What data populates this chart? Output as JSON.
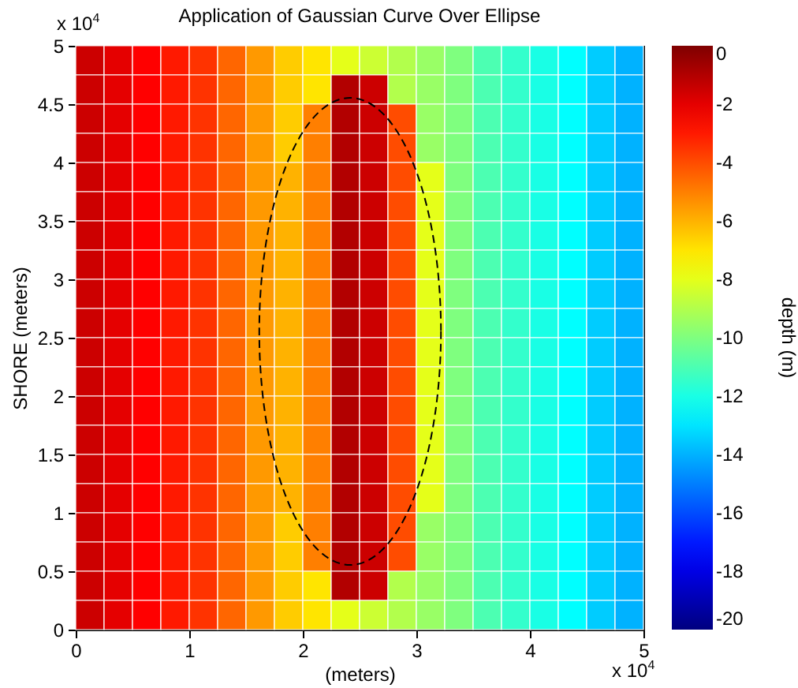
{
  "chart_data": {
    "type": "heatmap",
    "title": "Application of Gaussian Curve Over Ellipse",
    "xlabel": "(meters)",
    "ylabel": "SHORE    (meters)",
    "clabel": "depth (m)",
    "annotations": [
      "x 10$^{4}$",
      "x 10$^{4}$"
    ],
    "xlim": [
      0,
      5
    ],
    "ylim": [
      0,
      5
    ],
    "xticks": [
      0,
      1,
      2,
      3,
      4,
      5
    ],
    "yticks": [
      0,
      0.5,
      1,
      1.5,
      2,
      2.5,
      3,
      3.5,
      4,
      4.5,
      5
    ],
    "clim": [
      -20,
      0
    ],
    "cticks": [
      -20,
      -18,
      -16,
      -14,
      -12,
      -10,
      -8,
      -6,
      -4,
      -2,
      0
    ],
    "cells": [
      [
        -1.5,
        -2,
        -2.5,
        -3,
        -3.5,
        -4.5,
        -5.5,
        -6.5,
        -7,
        -8,
        -8.5,
        -9,
        -9.5,
        -10,
        -11,
        -11.5,
        -12,
        -12.5,
        -13.5,
        -14
      ],
      [
        -1.5,
        -2,
        -2.5,
        -3,
        -3.5,
        -4.5,
        -5.5,
        -6.5,
        -7,
        -1,
        -1.5,
        -9,
        -9.5,
        -10,
        -11,
        -11.5,
        -12,
        -12.5,
        -13.5,
        -14
      ],
      [
        -1.5,
        -2,
        -2.5,
        -3,
        -3.5,
        -4.5,
        -5.5,
        -6.5,
        -5,
        -1,
        -1.5,
        -4,
        -9.5,
        -10,
        -11,
        -11.5,
        -12,
        -12.5,
        -13.5,
        -14
      ],
      [
        -1.5,
        -2,
        -2.5,
        -3,
        -3.5,
        -4.5,
        -5.5,
        -6.5,
        -5,
        -1,
        -1.5,
        -4,
        -9.5,
        -10,
        -11,
        -11.5,
        -12,
        -12.5,
        -13.5,
        -14
      ],
      [
        -1.5,
        -2,
        -2.5,
        -3,
        -3.5,
        -4.5,
        -5.5,
        -6,
        -5,
        -1,
        -1.5,
        -4,
        -8,
        -10,
        -11,
        -11.5,
        -12,
        -12.5,
        -13.5,
        -14
      ],
      [
        -1.5,
        -2,
        -2.5,
        -3,
        -3.5,
        -4.5,
        -5.5,
        -6,
        -5,
        -1,
        -1.5,
        -4,
        -8,
        -10,
        -11,
        -11.5,
        -12,
        -12.5,
        -13.5,
        -14
      ],
      [
        -1.5,
        -2,
        -2.5,
        -3,
        -3.5,
        -4.5,
        -5.5,
        -6,
        -5,
        -1,
        -1.5,
        -4,
        -8,
        -10,
        -11,
        -11.5,
        -12,
        -12.5,
        -13.5,
        -14
      ],
      [
        -1.5,
        -2,
        -2.5,
        -3,
        -3.5,
        -4.5,
        -5.5,
        -6,
        -5,
        -1,
        -1.5,
        -4,
        -8,
        -10,
        -11,
        -11.5,
        -12,
        -12.5,
        -13.5,
        -14
      ],
      [
        -1.5,
        -2,
        -2.5,
        -3,
        -3.5,
        -4.5,
        -5.5,
        -6,
        -5,
        -1,
        -1.5,
        -4,
        -8,
        -10,
        -11,
        -11.5,
        -12,
        -12.5,
        -13.5,
        -14
      ],
      [
        -1.5,
        -2,
        -2.5,
        -3,
        -3.5,
        -4.5,
        -5.5,
        -6,
        -5,
        -1,
        -1.5,
        -4,
        -8,
        -10,
        -11,
        -11.5,
        -12,
        -12.5,
        -13.5,
        -14
      ],
      [
        -1.5,
        -2,
        -2.5,
        -3,
        -3.5,
        -4.5,
        -5.5,
        -6,
        -5,
        -1,
        -1.5,
        -4,
        -8,
        -10,
        -11,
        -11.5,
        -12,
        -12.5,
        -13.5,
        -14
      ],
      [
        -1.5,
        -2,
        -2.5,
        -3,
        -3.5,
        -4.5,
        -5.5,
        -6,
        -5,
        -1,
        -1.5,
        -4,
        -8,
        -10,
        -11,
        -11.5,
        -12,
        -12.5,
        -13.5,
        -14
      ],
      [
        -1.5,
        -2,
        -2.5,
        -3,
        -3.5,
        -4.5,
        -5.5,
        -6,
        -5,
        -1,
        -1.5,
        -4,
        -8,
        -10,
        -11,
        -11.5,
        -12,
        -12.5,
        -13.5,
        -14
      ],
      [
        -1.5,
        -2,
        -2.5,
        -3,
        -3.5,
        -4.5,
        -5.5,
        -6,
        -5,
        -1,
        -1.5,
        -4,
        -8,
        -10,
        -11,
        -11.5,
        -12,
        -12.5,
        -13.5,
        -14
      ],
      [
        -1.5,
        -2,
        -2.5,
        -3,
        -3.5,
        -4.5,
        -5.5,
        -6,
        -5,
        -1,
        -1.5,
        -4,
        -8,
        -10,
        -11,
        -11.5,
        -12,
        -12.5,
        -13.5,
        -14
      ],
      [
        -1.5,
        -2,
        -2.5,
        -3,
        -3.5,
        -4.5,
        -5.5,
        -6,
        -5,
        -1,
        -1.5,
        -4,
        -8,
        -10,
        -11,
        -11.5,
        -12,
        -12.5,
        -13.5,
        -14
      ],
      [
        -1.5,
        -2,
        -2.5,
        -3,
        -3.5,
        -4.5,
        -5.5,
        -6.5,
        -5,
        -1,
        -1.5,
        -4,
        -9.5,
        -10,
        -11,
        -11.5,
        -12,
        -12.5,
        -13.5,
        -14
      ],
      [
        -1.5,
        -2,
        -2.5,
        -3,
        -3.5,
        -4.5,
        -5.5,
        -6.5,
        -5,
        -1,
        -1.5,
        -4,
        -9.5,
        -10,
        -11,
        -11.5,
        -12,
        -12.5,
        -13.5,
        -14
      ],
      [
        -1.5,
        -2,
        -2.5,
        -3,
        -3.5,
        -4.5,
        -5.5,
        -6.5,
        -7,
        -1,
        -1.5,
        -9,
        -9.5,
        -10,
        -11,
        -11.5,
        -12,
        -12.5,
        -13.5,
        -14
      ],
      [
        -1.5,
        -2,
        -2.5,
        -3,
        -3.5,
        -4.5,
        -5.5,
        -6.5,
        -7,
        -8,
        -8.5,
        -9,
        -9.5,
        -10,
        -11,
        -11.5,
        -12,
        -12.5,
        -13.5,
        -14
      ]
    ],
    "grid": false
  }
}
